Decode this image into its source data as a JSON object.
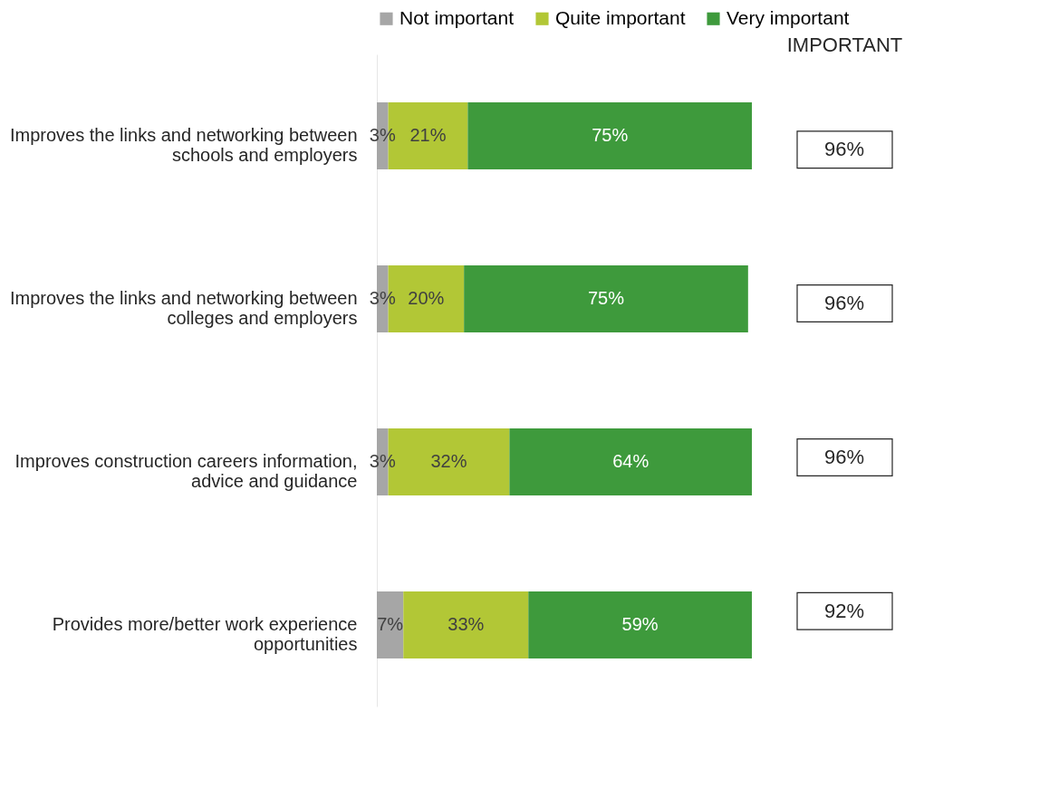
{
  "chart_data": {
    "type": "bar",
    "orientation": "horizontal",
    "stacked": true,
    "data_labels": true,
    "legend": "top",
    "grid": false,
    "categories": [
      "Improves the links and networking between schools and employers",
      "Improves the links and networking between colleges and employers",
      "Improves construction careers information, advice and guidance",
      "Provides more/better work experience opportunities"
    ],
    "series": [
      {
        "name": "Not important",
        "color": "#a6a6a6",
        "values": [
          3,
          3,
          3,
          7
        ],
        "value_labels": [
          "3%",
          "3%",
          "3%",
          "7%"
        ]
      },
      {
        "name": "Quite important",
        "color": "#b2c736",
        "values": [
          21,
          20,
          32,
          33
        ],
        "value_labels": [
          "21%",
          "20%",
          "32%",
          "33%"
        ]
      },
      {
        "name": "Very important",
        "color": "#3e9a3c",
        "values": [
          75,
          75,
          64,
          59
        ],
        "value_labels": [
          "75%",
          "75%",
          "64%",
          "59%"
        ]
      }
    ],
    "annotations": [
      "IMPORTANT",
      "96%",
      "96%",
      "96%",
      "92%"
    ]
  }
}
